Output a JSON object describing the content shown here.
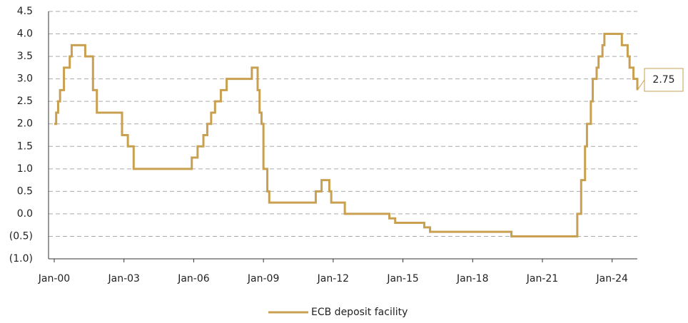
{
  "chart_data": {
    "type": "step-line",
    "x": [
      "2000-01",
      "2000-02",
      "2000-03",
      "2000-04",
      "2000-06",
      "2000-09",
      "2000-10",
      "2001-05",
      "2001-09",
      "2001-11",
      "2002-12",
      "2003-03",
      "2003-06",
      "2005-12",
      "2006-03",
      "2006-06",
      "2006-08",
      "2006-10",
      "2006-12",
      "2007-03",
      "2007-06",
      "2008-07",
      "2008-10",
      "2008-11",
      "2008-12",
      "2009-01",
      "2009-03",
      "2009-04",
      "2011-04",
      "2011-07",
      "2011-11",
      "2011-12",
      "2012-07",
      "2014-06",
      "2014-09",
      "2015-12",
      "2016-03",
      "2019-09",
      "2022-07",
      "2022-09",
      "2022-11",
      "2022-12",
      "2023-02",
      "2023-03",
      "2023-05",
      "2023-06",
      "2023-08",
      "2023-09",
      "2024-06",
      "2024-09",
      "2024-10",
      "2024-12",
      "2025-02"
    ],
    "series": [
      {
        "name": "ECB deposit facility",
        "color": "#c9a050",
        "values": [
          2.0,
          2.25,
          2.5,
          2.75,
          3.25,
          3.5,
          3.75,
          3.5,
          2.75,
          2.25,
          1.75,
          1.5,
          1.0,
          1.25,
          1.5,
          1.75,
          2.0,
          2.25,
          2.5,
          2.75,
          3.0,
          3.25,
          2.75,
          2.25,
          2.0,
          1.0,
          0.5,
          0.25,
          0.5,
          0.75,
          0.5,
          0.25,
          0.0,
          -0.1,
          -0.2,
          -0.3,
          -0.4,
          -0.5,
          0.0,
          0.75,
          1.5,
          2.0,
          2.5,
          3.0,
          3.25,
          3.5,
          3.75,
          4.0,
          3.75,
          3.5,
          3.25,
          3.0,
          2.75
        ],
        "last_value_label": "2.75"
      }
    ],
    "xlim": [
      "2000-01",
      "2025-02"
    ],
    "xticks": [
      {
        "value": "2000-01",
        "label": "Jan-00"
      },
      {
        "value": "2003-01",
        "label": "Jan-03"
      },
      {
        "value": "2006-01",
        "label": "Jan-06"
      },
      {
        "value": "2009-01",
        "label": "Jan-09"
      },
      {
        "value": "2012-01",
        "label": "Jan-12"
      },
      {
        "value": "2015-01",
        "label": "Jan-15"
      },
      {
        "value": "2018-01",
        "label": "Jan-18"
      },
      {
        "value": "2021-01",
        "label": "Jan-21"
      },
      {
        "value": "2024-01",
        "label": "Jan-24"
      }
    ],
    "ylim": [
      -1.0,
      4.5
    ],
    "yticks": [
      {
        "value": -1,
        "label": "(1.0)"
      },
      {
        "value": -0.5,
        "label": "(0.5)"
      },
      {
        "value": 0,
        "label": "0.0"
      },
      0.5,
      {
        "value": 1,
        "label": "1.0"
      },
      1.5,
      {
        "value": 2,
        "label": "2.0"
      },
      2.5,
      {
        "value": 3,
        "label": "3.0"
      },
      3.5,
      {
        "value": 4,
        "label": "4.0"
      },
      4.5
    ],
    "grid": true
  }
}
